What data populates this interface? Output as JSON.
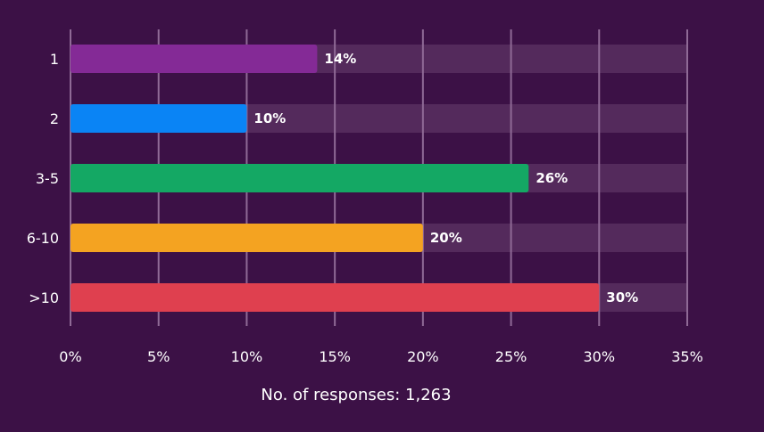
{
  "chart_data": {
    "type": "bar",
    "orientation": "horizontal",
    "categories": [
      "1",
      "2",
      "3-5",
      "6-10",
      ">10"
    ],
    "values": [
      14,
      10,
      26,
      20,
      30
    ],
    "value_labels": [
      "14%",
      "10%",
      "26%",
      "20%",
      "30%"
    ],
    "bar_colors": [
      "#842a96",
      "#0a84f5",
      "#14a864",
      "#f4a321",
      "#df404f"
    ],
    "track_color": "#542a5c",
    "grid_color": "#8f6a96",
    "xlim": [
      0,
      35
    ],
    "x_ticks": [
      0,
      5,
      10,
      15,
      20,
      25,
      30,
      35
    ],
    "x_tick_labels": [
      "0%",
      "5%",
      "10%",
      "15%",
      "20%",
      "25%",
      "30%",
      "35%"
    ],
    "grid": true,
    "xlabel": "No. of responses: 1,263",
    "ylabel": "",
    "title": ""
  },
  "colors": {
    "background": "#3c1146",
    "text": "#ffffff"
  }
}
